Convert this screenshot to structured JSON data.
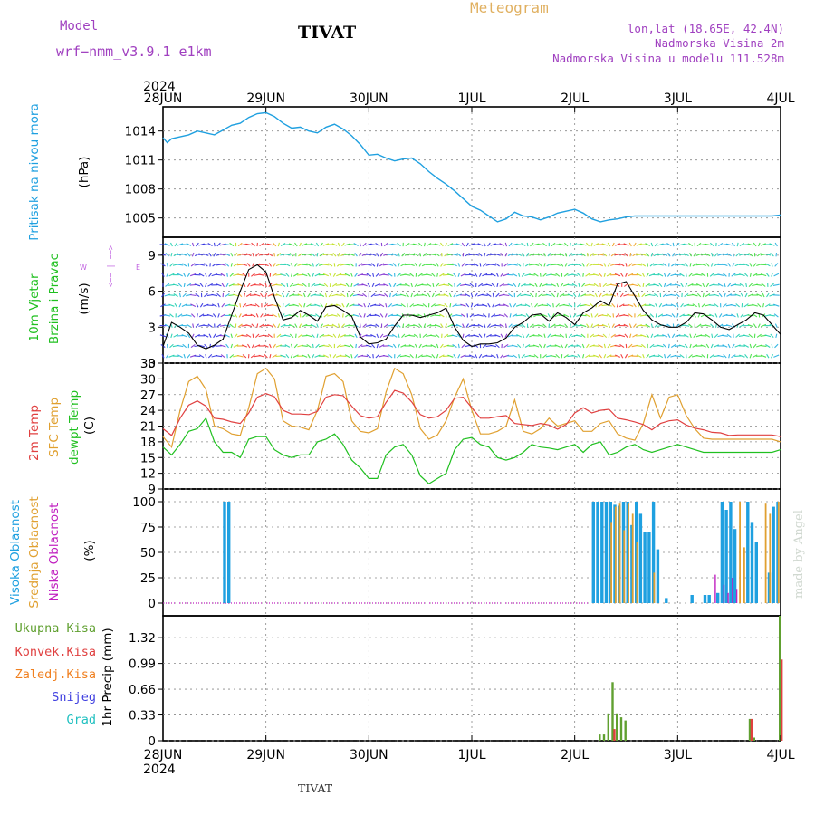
{
  "header": {
    "model_label": "Model",
    "model_name": "wrf−nmm_v3.9.1  e1km",
    "station_title": "TIVAT",
    "chart_title": "Meteogram",
    "coords": "lon,lat (18.65E, 42.4N)",
    "elevation": "Nadmorska Visina 2m",
    "model_elevation": "Nadmorska Visina u modelu 111.528m",
    "footer_station": "TIVAT",
    "watermark": "made by Angel"
  },
  "time_axis": {
    "year": "2024",
    "ticks": [
      "28JUN",
      "29JUN",
      "30JUN",
      "1JUL",
      "2JUL",
      "3JUL",
      "4JUL"
    ],
    "range_hours": [
      0,
      144
    ]
  },
  "colors": {
    "pressure": "#1fa0e0",
    "temp2m": "#e04040",
    "sfc_temp": "#e0a030",
    "dewpt": "#20c020",
    "high_cloud": "#1fa0e0",
    "mid_cloud": "#e0a030",
    "low_cloud": "#c020c0",
    "total_precip": "#60a030",
    "conv_precip": "#e04040",
    "frozen_precip": "#f08020",
    "snow": "#4040e0",
    "graupel": "#20c0c0",
    "wind_dir_compass": "#c060e0",
    "model_text": "#a040c0",
    "meteogram_text": "#e0b060"
  },
  "panels": {
    "pressure": {
      "ylabel_a": "Pritisak na nivou mora",
      "ylabel_b": "(hPa)",
      "ticks": [
        "1014",
        "1011",
        "1008",
        "1005"
      ]
    },
    "wind": {
      "ylabel_a": "10m Vjetar",
      "ylabel_b": "Brzina i Pravac",
      "ylabel_c": "(m/s)",
      "ticks": [
        "9",
        "6",
        "3",
        "0"
      ],
      "compass_w": "W",
      "compass_e": "E",
      "compass_arrow": "<−− | −−>"
    },
    "temperature": {
      "ylabel_a": "2m Temp",
      "ylabel_b": "SFC Temp",
      "ylabel_c": "dewpt Temp",
      "ylabel_d": "(C)",
      "ticks": [
        "33",
        "30",
        "27",
        "24",
        "21",
        "18",
        "15",
        "12",
        "9"
      ]
    },
    "cloud": {
      "ylabel_a": "Visoka Oblacnost",
      "ylabel_b": "Srednja Oblacnost",
      "ylabel_c": "Niska Oblacnost",
      "ylabel_d": "(%)",
      "ticks": [
        "100",
        "75",
        "50",
        "25",
        "0"
      ]
    },
    "precip": {
      "legend": [
        "Ukupna Kisa",
        "Konvek.Kisa",
        "Zaledj.Kisa",
        "Snijeg",
        "Grad"
      ],
      "ylabel": "1hr Precip (mm)",
      "ticks": [
        "1.32",
        "0.99",
        "0.66",
        "0.33",
        "0"
      ]
    }
  },
  "chart_data": [
    {
      "type": "line",
      "series": [
        {
          "name": "Pritisak na nivou mora",
          "x": [
            0,
            1,
            2,
            4,
            6,
            8,
            10,
            12,
            14,
            16,
            18,
            20,
            22,
            24,
            26,
            28,
            30,
            32,
            34,
            36,
            38,
            40,
            42,
            44,
            46,
            48,
            50,
            52,
            54,
            56,
            58,
            60,
            62,
            64,
            66,
            68,
            70,
            72,
            74,
            76,
            78,
            80,
            82,
            84,
            86,
            88,
            90,
            92,
            94,
            96,
            98,
            100,
            102,
            104,
            106,
            108,
            110,
            112,
            114,
            116,
            118,
            120,
            122,
            124,
            126,
            128,
            130,
            132,
            134,
            136,
            138,
            140,
            142,
            144
          ],
          "y": [
            1013.3,
            1012.8,
            1013.2,
            1013.4,
            1013.6,
            1014.0,
            1013.8,
            1013.6,
            1014.1,
            1014.6,
            1014.8,
            1015.4,
            1015.8,
            1015.9,
            1015.5,
            1014.8,
            1014.3,
            1014.4,
            1014.0,
            1013.8,
            1014.4,
            1014.7,
            1014.2,
            1013.5,
            1012.6,
            1011.5,
            1011.6,
            1011.2,
            1010.9,
            1011.1,
            1011.2,
            1010.6,
            1009.8,
            1009.1,
            1008.5,
            1007.8,
            1007.0,
            1006.2,
            1005.8,
            1005.2,
            1004.6,
            1004.9,
            1005.6,
            1005.2,
            1005.1,
            1004.8,
            1005.1,
            1005.5,
            1005.7,
            1005.9,
            1005.5,
            1004.9,
            1004.6,
            1004.8,
            1004.9,
            1005.1,
            1005.2,
            1005.2,
            1005.2,
            1005.2,
            1005.2,
            1005.2,
            1005.2,
            1005.2,
            1005.2,
            1005.2,
            1005.2,
            1005.2,
            1005.2,
            1005.2,
            1005.2,
            1005.2,
            1005.2,
            1005.3
          ]
        }
      ],
      "ylim": [
        1003,
        1016.5
      ]
    },
    {
      "type": "line",
      "series": [
        {
          "name": "10m Vjetar Brzina",
          "x": [
            0,
            2,
            4,
            6,
            8,
            10,
            12,
            14,
            16,
            18,
            20,
            22,
            24,
            26,
            28,
            30,
            32,
            34,
            36,
            38,
            40,
            42,
            44,
            46,
            48,
            50,
            52,
            54,
            56,
            58,
            60,
            62,
            64,
            66,
            68,
            70,
            72,
            74,
            76,
            78,
            80,
            82,
            84,
            86,
            88,
            90,
            92,
            94,
            96,
            98,
            100,
            102,
            104,
            106,
            108,
            110,
            112,
            114,
            116,
            118,
            120,
            122,
            124,
            126,
            128,
            130,
            132,
            134,
            136,
            138,
            140,
            142,
            144
          ],
          "y": [
            1.4,
            3.4,
            3.0,
            2.5,
            1.5,
            1.2,
            1.5,
            2.0,
            4.0,
            6.0,
            7.8,
            8.2,
            7.6,
            5.5,
            3.6,
            3.8,
            4.4,
            4.0,
            3.5,
            4.7,
            4.8,
            4.4,
            3.9,
            2.2,
            1.6,
            1.7,
            2.0,
            3.1,
            4.0,
            4.0,
            3.8,
            4.0,
            4.2,
            4.6,
            3.0,
            1.9,
            1.4,
            1.6,
            1.6,
            1.7,
            2.1,
            3.0,
            3.4,
            4.0,
            4.1,
            3.5,
            4.2,
            3.8,
            3.2,
            4.2,
            4.6,
            5.2,
            4.8,
            6.6,
            6.8,
            5.6,
            4.4,
            3.6,
            3.2,
            3.0,
            3.0,
            3.4,
            4.2,
            4.1,
            3.6,
            3.0,
            2.8,
            3.2,
            3.6,
            4.2,
            4.0,
            3.2,
            2.4
          ]
        }
      ],
      "ylim": [
        0,
        10.5
      ]
    },
    {
      "type": "line",
      "series": [
        {
          "name": "2m Temp",
          "x": [
            0,
            2,
            4,
            6,
            8,
            10,
            12,
            14,
            16,
            18,
            20,
            22,
            24,
            26,
            28,
            30,
            32,
            34,
            36,
            38,
            40,
            42,
            44,
            46,
            48,
            50,
            52,
            54,
            56,
            58,
            60,
            62,
            64,
            66,
            68,
            70,
            72,
            74,
            76,
            78,
            80,
            82,
            84,
            86,
            88,
            90,
            92,
            94,
            96,
            98,
            100,
            102,
            104,
            106,
            108,
            110,
            112,
            114,
            116,
            118,
            120,
            122,
            124,
            126,
            128,
            130,
            132,
            134,
            136,
            138,
            140,
            142,
            144
          ],
          "y": [
            20.5,
            19.2,
            22.5,
            25.0,
            25.8,
            24.8,
            22.5,
            22.3,
            21.8,
            21.5,
            23.5,
            26.5,
            27.2,
            26.6,
            24.0,
            23.3,
            23.3,
            23.2,
            23.8,
            26.5,
            27.0,
            26.8,
            24.8,
            23.0,
            22.5,
            22.8,
            25.5,
            27.8,
            27.3,
            25.6,
            23.2,
            22.5,
            22.8,
            24.0,
            26.3,
            26.5,
            24.5,
            22.5,
            22.5,
            22.8,
            23.0,
            21.5,
            21.3,
            21.1,
            21.5,
            21.2,
            20.4,
            21.3,
            23.5,
            24.5,
            23.5,
            24.0,
            24.2,
            22.5,
            22.2,
            21.8,
            21.3,
            20.3,
            21.5,
            22.0,
            22.2,
            21.2,
            20.6,
            20.3,
            19.8,
            19.7,
            19.2,
            19.3,
            19.3,
            19.3,
            19.3,
            19.3,
            19.0
          ]
        },
        {
          "name": "SFC Temp",
          "x": [
            0,
            2,
            4,
            6,
            8,
            10,
            12,
            14,
            16,
            18,
            20,
            22,
            24,
            26,
            28,
            30,
            32,
            34,
            36,
            38,
            40,
            42,
            44,
            46,
            48,
            50,
            52,
            54,
            56,
            58,
            60,
            62,
            64,
            66,
            68,
            70,
            72,
            74,
            76,
            78,
            80,
            82,
            84,
            86,
            88,
            90,
            92,
            94,
            96,
            98,
            100,
            102,
            104,
            106,
            108,
            110,
            112,
            114,
            116,
            118,
            120,
            122,
            124,
            126,
            128,
            130,
            132,
            134,
            136,
            138,
            140,
            142,
            144
          ],
          "y": [
            19.0,
            17.0,
            24.0,
            29.5,
            30.5,
            28.0,
            21.0,
            20.5,
            19.5,
            19.2,
            24.5,
            31.0,
            32.0,
            30.0,
            22.0,
            21.0,
            20.8,
            20.3,
            24.0,
            30.5,
            31.0,
            29.5,
            22.0,
            20.0,
            19.7,
            20.5,
            27.5,
            32.0,
            31.0,
            27.0,
            20.5,
            18.5,
            19.3,
            22.0,
            26.5,
            30.0,
            24.0,
            19.5,
            19.5,
            20.0,
            21.0,
            26.0,
            20.0,
            19.5,
            20.5,
            22.5,
            21.0,
            21.5,
            22.0,
            20.0,
            20.0,
            21.5,
            22.0,
            19.5,
            18.7,
            18.3,
            21.5,
            27.0,
            22.5,
            26.5,
            27.0,
            23.0,
            20.5,
            18.7,
            18.5,
            18.5,
            18.5,
            18.5,
            18.5,
            18.5,
            18.5,
            18.5,
            18.0
          ]
        },
        {
          "name": "dewpt Temp",
          "x": [
            0,
            2,
            4,
            6,
            8,
            10,
            12,
            14,
            16,
            18,
            20,
            22,
            24,
            26,
            28,
            30,
            32,
            34,
            36,
            38,
            40,
            42,
            44,
            46,
            48,
            50,
            52,
            54,
            56,
            58,
            60,
            62,
            64,
            66,
            68,
            70,
            72,
            74,
            76,
            78,
            80,
            82,
            84,
            86,
            88,
            90,
            92,
            94,
            96,
            98,
            100,
            102,
            104,
            106,
            108,
            110,
            112,
            114,
            116,
            118,
            120,
            122,
            124,
            126,
            128,
            130,
            132,
            134,
            136,
            138,
            140,
            142,
            144
          ],
          "y": [
            17.0,
            15.5,
            17.5,
            20.0,
            20.5,
            22.5,
            18.0,
            16.0,
            16.0,
            15.0,
            18.5,
            19.0,
            19.0,
            16.5,
            15.5,
            15.0,
            15.5,
            15.5,
            18.0,
            18.5,
            19.5,
            17.5,
            14.5,
            13.0,
            11.0,
            11.0,
            15.5,
            17.0,
            17.5,
            15.5,
            11.5,
            10.0,
            11.0,
            12.0,
            16.5,
            18.5,
            18.8,
            17.5,
            17.0,
            15.0,
            14.5,
            15.0,
            16.0,
            17.5,
            17.0,
            16.8,
            16.5,
            17.0,
            17.5,
            16.0,
            17.5,
            18.0,
            15.5,
            16.0,
            17.0,
            17.5,
            16.5,
            16.0,
            16.5,
            17.0,
            17.5,
            17.0,
            16.5,
            16.0,
            16.0,
            16.0,
            16.0,
            16.0,
            16.0,
            16.0,
            16.0,
            16.0,
            16.5
          ]
        }
      ],
      "ylim": [
        9,
        33
      ]
    },
    {
      "type": "bar",
      "series": [
        {
          "name": "Visoka Oblacnost",
          "x": [
            14,
            15,
            100,
            101,
            102,
            103,
            104,
            105,
            106,
            107,
            108,
            109,
            110,
            111,
            112,
            113,
            114,
            115,
            117,
            123,
            126,
            127,
            129,
            130,
            131,
            132,
            133,
            136,
            137,
            138,
            141,
            142,
            143
          ],
          "y": [
            100,
            100,
            100,
            100,
            100,
            100,
            100,
            97,
            96,
            100,
            100,
            77,
            100,
            88,
            70,
            70,
            100,
            53,
            5,
            8,
            8,
            8,
            10,
            100,
            92,
            100,
            73,
            100,
            80,
            60,
            30,
            95,
            100
          ]
        },
        {
          "name": "Srednja Oblacnost",
          "x": [
            104,
            105,
            106,
            107,
            108,
            109,
            110,
            114,
            134,
            135,
            140,
            141,
            143
          ],
          "y": [
            80,
            95,
            98,
            72,
            98,
            88,
            60,
            30,
            100,
            55,
            98,
            88,
            100
          ]
        },
        {
          "name": "Niska Oblacnost",
          "x": [
            128,
            130,
            131,
            132,
            133
          ],
          "y": [
            28,
            18,
            10,
            25,
            14
          ]
        }
      ],
      "ylim": [
        0,
        100
      ]
    },
    {
      "type": "bar",
      "series": [
        {
          "name": "Ukupna Kisa",
          "x": [
            102,
            103,
            104,
            105,
            106,
            107,
            108,
            110,
            137,
            138,
            144
          ],
          "y": [
            0.08,
            0.08,
            0.35,
            0.75,
            0.35,
            0.3,
            0.26,
            0.0,
            0.28,
            0.04,
            1.6
          ]
        },
        {
          "name": "Konvek.Kisa",
          "x": [
            105,
            137,
            144
          ],
          "y": [
            0.15,
            0.28,
            1.04
          ]
        }
      ],
      "ylim": [
        0,
        1.6
      ]
    }
  ]
}
